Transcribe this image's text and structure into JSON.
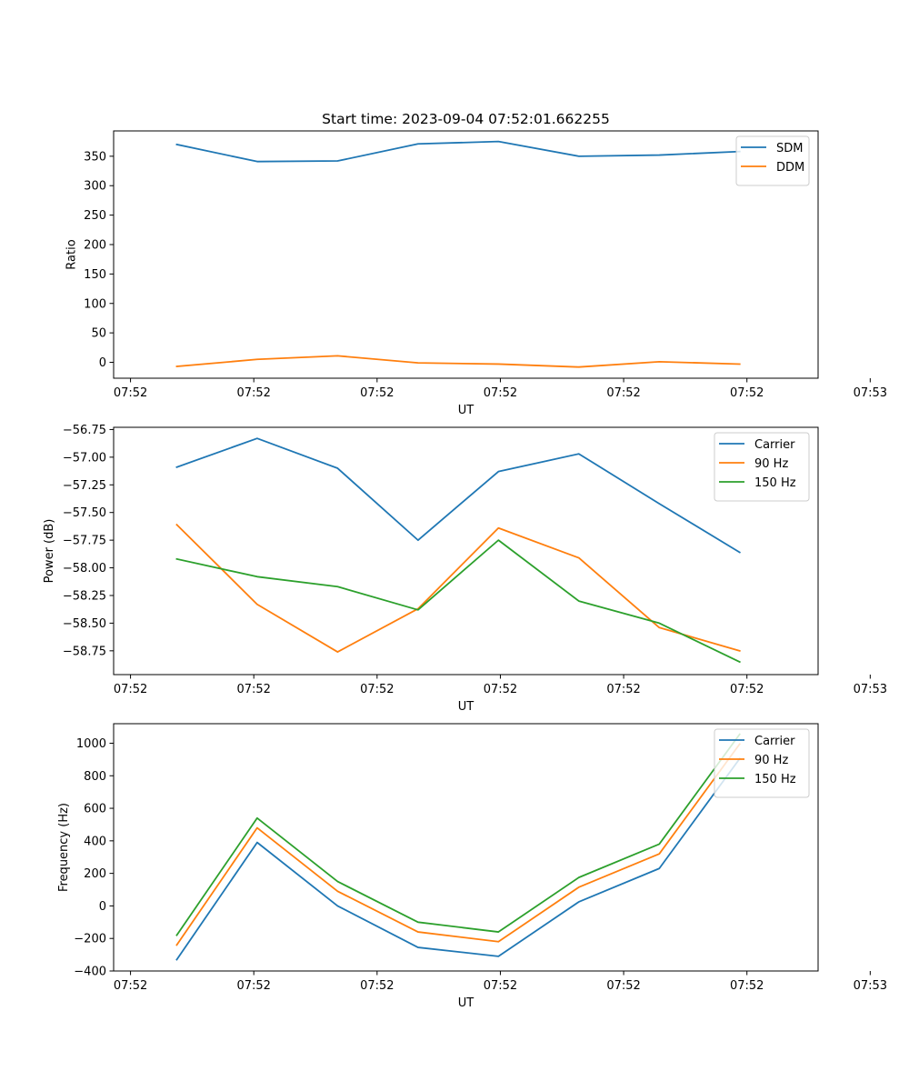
{
  "chart_data": [
    {
      "type": "line",
      "title": "Start time: 2023-09-04 07:52:01.662255",
      "xlabel": "UT",
      "ylabel": "Ratio",
      "x": [
        1,
        2,
        3,
        4,
        5,
        6,
        7,
        8
      ],
      "xlim": [
        0.215,
        8.975
      ],
      "xticks": [
        0.425,
        1.958,
        3.491,
        5.024,
        6.557,
        8.09,
        9.623
      ],
      "xtick_labels": [
        "07:52",
        "07:52",
        "07:52",
        "07:52",
        "07:52",
        "07:52",
        "07:53"
      ],
      "ylim": [
        -27,
        393
      ],
      "yticks": [
        0,
        50,
        100,
        150,
        200,
        250,
        300,
        350
      ],
      "ytick_labels": [
        "0",
        "50",
        "100",
        "150",
        "200",
        "250",
        "300",
        "350"
      ],
      "legend_position": "upper-right",
      "series": [
        {
          "name": "SDM",
          "color": "#1f77b4",
          "values": [
            370,
            341,
            342,
            371,
            375,
            350,
            352,
            358
          ]
        },
        {
          "name": "DDM",
          "color": "#ff7f0e",
          "values": [
            -7,
            5,
            11,
            -1,
            -3,
            -8,
            1,
            -3
          ]
        }
      ]
    },
    {
      "type": "line",
      "title": "",
      "xlabel": "UT",
      "ylabel": "Power (dB)",
      "x": [
        1,
        2,
        3,
        4,
        5,
        6,
        7,
        8
      ],
      "xlim": [
        0.215,
        8.975
      ],
      "xticks": [
        0.425,
        1.958,
        3.491,
        5.024,
        6.557,
        8.09,
        9.623
      ],
      "xtick_labels": [
        "07:52",
        "07:52",
        "07:52",
        "07:52",
        "07:52",
        "07:52",
        "07:53"
      ],
      "ylim": [
        -58.965,
        -56.73
      ],
      "yticks": [
        -58.75,
        -58.5,
        -58.25,
        -58.0,
        -57.75,
        -57.5,
        -57.25,
        -57.0,
        -56.75
      ],
      "ytick_labels": [
        "−58.75",
        "−58.50",
        "−58.25",
        "−58.00",
        "−57.75",
        "−57.50",
        "−57.25",
        "−57.00",
        "−56.75"
      ],
      "legend_position": "upper-right",
      "series": [
        {
          "name": "Carrier",
          "color": "#1f77b4",
          "values": [
            -57.09,
            -56.83,
            -57.1,
            -57.75,
            -57.13,
            -56.97,
            -57.42,
            -57.86
          ]
        },
        {
          "name": "90 Hz",
          "color": "#ff7f0e",
          "values": [
            -57.61,
            -58.33,
            -58.76,
            -58.37,
            -57.64,
            -57.91,
            -58.54,
            -58.75
          ]
        },
        {
          "name": "150 Hz",
          "color": "#2ca02c",
          "values": [
            -57.92,
            -58.08,
            -58.17,
            -58.38,
            -57.75,
            -58.3,
            -58.5,
            -58.85
          ]
        }
      ]
    },
    {
      "type": "line",
      "title": "",
      "xlabel": "UT",
      "ylabel": "Frequency (Hz)",
      "x": [
        1,
        2,
        3,
        4,
        5,
        6,
        7,
        8
      ],
      "xlim": [
        0.215,
        8.975
      ],
      "xticks": [
        0.425,
        1.958,
        3.491,
        5.024,
        6.557,
        8.09,
        9.623
      ],
      "xtick_labels": [
        "07:52",
        "07:52",
        "07:52",
        "07:52",
        "07:52",
        "07:52",
        "07:53"
      ],
      "ylim": [
        -400,
        1120
      ],
      "yticks": [
        -400,
        -200,
        0,
        200,
        400,
        600,
        800,
        1000
      ],
      "ytick_labels": [
        "−400",
        "−200",
        "0",
        "200",
        "400",
        "600",
        "800",
        "1000"
      ],
      "legend_position": "upper-right",
      "series": [
        {
          "name": "Carrier",
          "color": "#1f77b4",
          "values": [
            -330,
            390,
            0,
            -255,
            -310,
            25,
            230,
            905
          ]
        },
        {
          "name": "90 Hz",
          "color": "#ff7f0e",
          "values": [
            -240,
            480,
            90,
            -160,
            -220,
            115,
            320,
            995
          ]
        },
        {
          "name": "150 Hz",
          "color": "#2ca02c",
          "values": [
            -180,
            540,
            150,
            -100,
            -160,
            175,
            380,
            1055
          ]
        }
      ]
    }
  ]
}
